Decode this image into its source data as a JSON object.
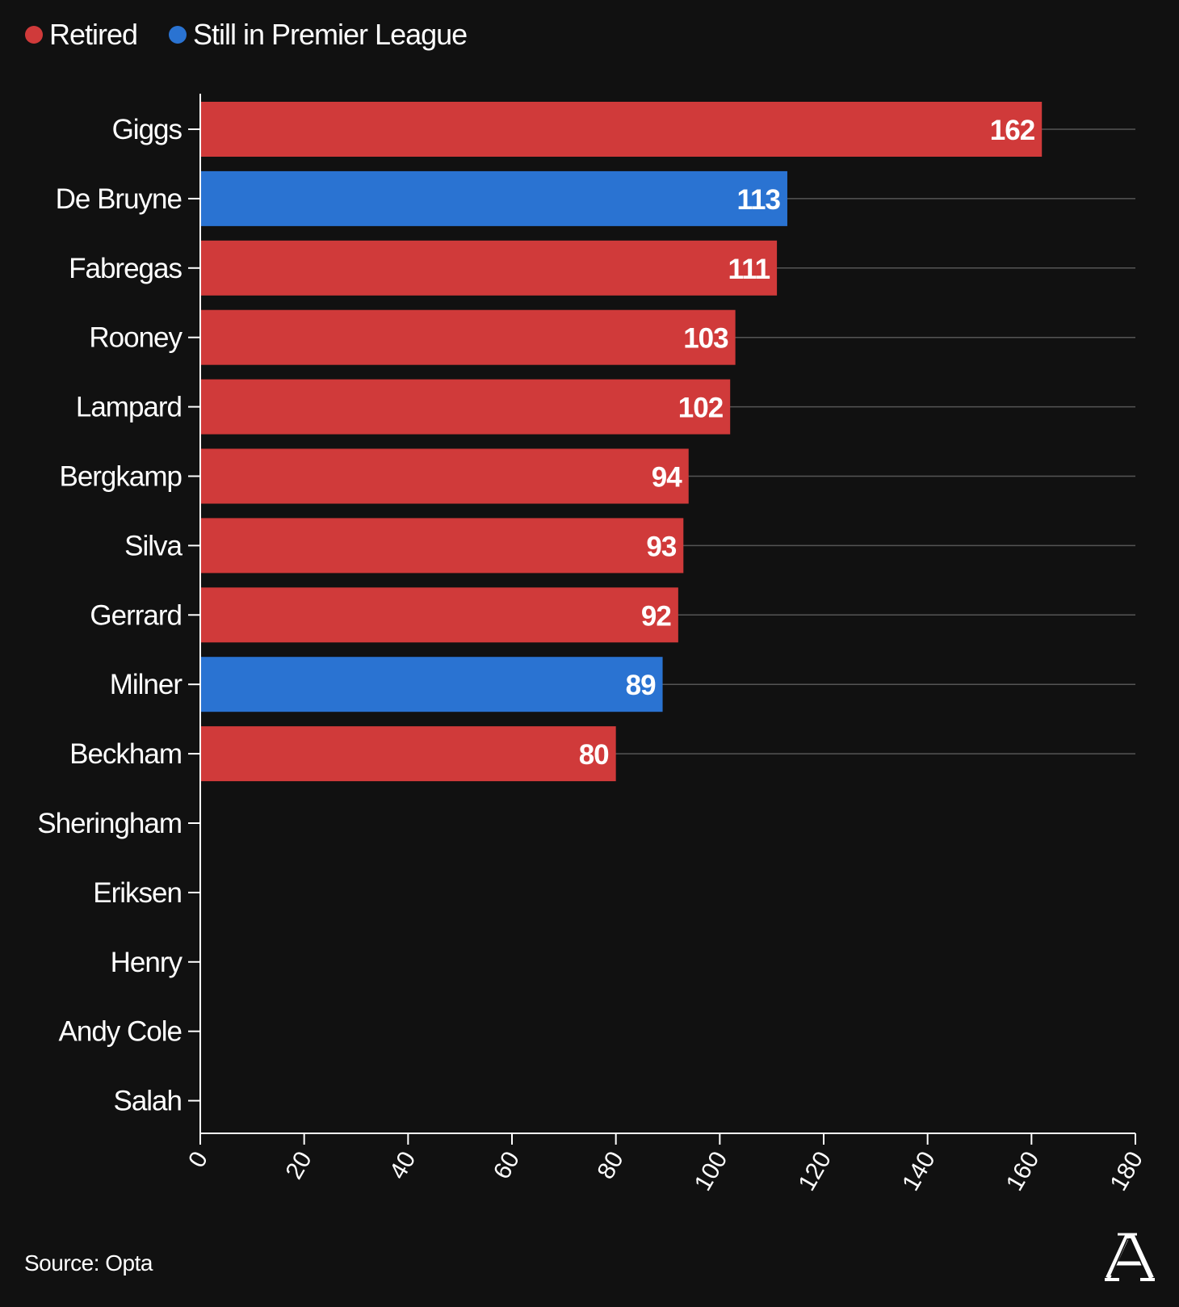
{
  "legend": [
    {
      "label": "Retired",
      "color": "#d03a3a"
    },
    {
      "label": "Still in Premier League",
      "color": "#2a73d2"
    }
  ],
  "source_text": "Source: Opta",
  "logo_icon": "the-athletic-logo-icon",
  "chart_data": {
    "type": "bar",
    "orientation": "horizontal",
    "categories": [
      "Giggs",
      "De Bruyne",
      "Fabregas",
      "Rooney",
      "Lampard",
      "Bergkamp",
      "Silva",
      "Gerrard",
      "Milner",
      "Beckham",
      "Sheringham",
      "Eriksen",
      "Henry",
      "Andy Cole",
      "Salah"
    ],
    "values": [
      162,
      113,
      111,
      103,
      102,
      94,
      93,
      92,
      89,
      80,
      null,
      null,
      null,
      null,
      null
    ],
    "status": [
      "Retired",
      "Still in Premier League",
      "Retired",
      "Retired",
      "Retired",
      "Retired",
      "Retired",
      "Retired",
      "Still in Premier League",
      "Retired",
      null,
      null,
      null,
      null,
      null
    ],
    "colors": {
      "Retired": "#d03a3a",
      "Still in Premier League": "#2a73d2"
    },
    "xlim": [
      0,
      180
    ],
    "xticks": [
      0,
      20,
      40,
      60,
      80,
      100,
      120,
      140,
      160,
      180
    ],
    "gridlines": true,
    "legend_position": "top-left"
  }
}
